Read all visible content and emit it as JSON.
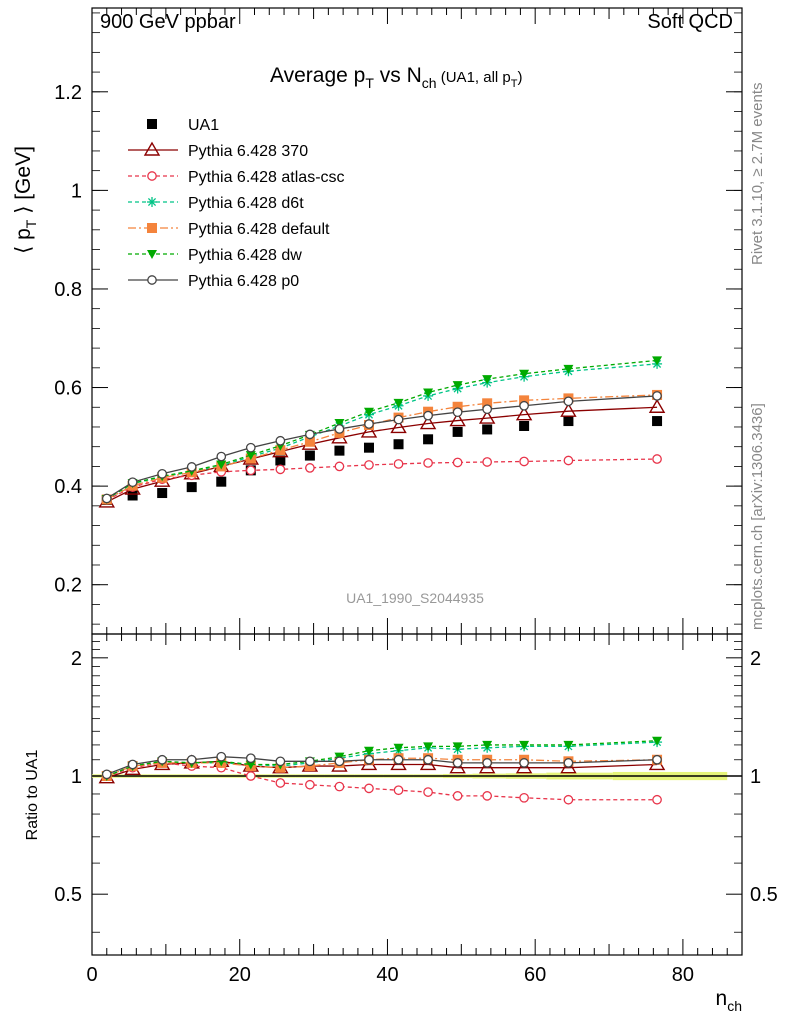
{
  "header": {
    "left": "900 GeV ppbar",
    "right": "Soft QCD"
  },
  "side": {
    "rivet": "Rivet 3.1.10, ≥ 2.7M events",
    "mcplots": "mcplots.cern.ch [arXiv:1306.3436]"
  },
  "analysis_label": "UA1_1990_S2044935",
  "chart_data": [
    {
      "type": "scatter",
      "title_parts": {
        "a": "Average p",
        "a_sub": "T",
        "b": " vs N",
        "b_sub": "ch",
        "c": " (UA1, all p",
        "c_sub": "T",
        "d": ")"
      },
      "ylabel_parts": {
        "a": "⟨ p",
        "sub": "T",
        "b": " ⟩ [GeV]"
      },
      "ylim": [
        0.1,
        1.37
      ],
      "yticks": [
        0.2,
        0.4,
        0.6,
        0.8,
        1.0,
        1.2
      ],
      "ytick_labels": [
        "0.2",
        "0.4",
        "0.6",
        "0.8",
        "1",
        "1.2"
      ],
      "xlim": [
        0,
        88
      ],
      "x": [
        2,
        5.5,
        9.5,
        13.5,
        17.5,
        21.5,
        25.5,
        29.5,
        33.5,
        37.5,
        41.5,
        45.5,
        49.5,
        53.5,
        58.5,
        64.5,
        76.5
      ],
      "legend_position": "top-left",
      "series": [
        {
          "name": "UA1",
          "color": "#000000",
          "marker": "square-filled",
          "dash": "none",
          "values": [
            0.372,
            0.381,
            0.386,
            0.398,
            0.409,
            0.432,
            0.452,
            0.462,
            0.472,
            0.478,
            0.485,
            0.495,
            0.51,
            0.515,
            0.522,
            0.532,
            0.532
          ]
        },
        {
          "name": "Pythia 6.428 370",
          "color": "#8b0000",
          "marker": "triangle-open",
          "dash": "solid",
          "values": [
            0.368,
            0.394,
            0.41,
            0.425,
            0.44,
            0.455,
            0.47,
            0.485,
            0.498,
            0.51,
            0.519,
            0.527,
            0.533,
            0.538,
            0.545,
            0.552,
            0.56
          ]
        },
        {
          "name": "Pythia 6.428 atlas-csc",
          "color": "#e8344a",
          "marker": "circle-open",
          "dash": "4,3",
          "values": [
            0.372,
            0.398,
            0.414,
            0.422,
            0.429,
            0.432,
            0.434,
            0.437,
            0.44,
            0.443,
            0.445,
            0.447,
            0.448,
            0.449,
            0.45,
            0.452,
            0.455
          ]
        },
        {
          "name": "Pythia 6.428 d6t",
          "color": "#00c486",
          "marker": "star",
          "dash": "4,3",
          "values": [
            0.374,
            0.405,
            0.419,
            0.429,
            0.441,
            0.46,
            0.477,
            0.5,
            0.522,
            0.545,
            0.563,
            0.583,
            0.598,
            0.61,
            0.622,
            0.633,
            0.648
          ]
        },
        {
          "name": "Pythia 6.428 default",
          "color": "#f4843c",
          "marker": "square-filled",
          "dash": "8,3,2,3",
          "values": [
            0.373,
            0.401,
            0.417,
            0.428,
            0.44,
            0.456,
            0.473,
            0.49,
            0.508,
            0.524,
            0.539,
            0.551,
            0.561,
            0.568,
            0.574,
            0.578,
            0.585
          ]
        },
        {
          "name": "Pythia 6.428 dw",
          "color": "#00aa00",
          "marker": "triangle-down-filled",
          "dash": "4,3",
          "values": [
            0.374,
            0.406,
            0.42,
            0.431,
            0.444,
            0.463,
            0.482,
            0.504,
            0.528,
            0.551,
            0.569,
            0.59,
            0.605,
            0.617,
            0.628,
            0.638,
            0.655
          ]
        },
        {
          "name": "Pythia 6.428 p0",
          "color": "#444444",
          "marker": "circle-open",
          "dash": "solid",
          "values": [
            0.375,
            0.408,
            0.425,
            0.439,
            0.46,
            0.478,
            0.492,
            0.505,
            0.516,
            0.526,
            0.535,
            0.543,
            0.55,
            0.556,
            0.563,
            0.572,
            0.583
          ]
        }
      ]
    },
    {
      "type": "scatter",
      "ylabel": "Ratio to UA1",
      "xlabel_parts": {
        "a": "n",
        "sub": "ch"
      },
      "ylim": [
        0.35,
        2.3
      ],
      "yticks": [
        0.5,
        1.0,
        2.0
      ],
      "ytick_labels": [
        "0.5",
        "1",
        "2"
      ],
      "xlim": [
        0,
        88
      ],
      "xticks": [
        0,
        20,
        40,
        60,
        80
      ],
      "xtick_labels": [
        "0",
        "20",
        "40",
        "60",
        "80"
      ],
      "x": [
        2,
        5.5,
        9.5,
        13.5,
        17.5,
        21.5,
        25.5,
        29.5,
        33.5,
        37.5,
        41.5,
        45.5,
        49.5,
        53.5,
        58.5,
        64.5,
        76.5
      ],
      "band_color": "#e6f57a",
      "reference": 1.0,
      "series": [
        {
          "name": "Pythia 6.428 370",
          "color": "#8b0000",
          "marker": "triangle-open",
          "dash": "solid",
          "values": [
            0.99,
            1.04,
            1.07,
            1.08,
            1.09,
            1.06,
            1.05,
            1.06,
            1.06,
            1.07,
            1.07,
            1.07,
            1.05,
            1.05,
            1.05,
            1.05,
            1.07
          ]
        },
        {
          "name": "Pythia 6.428 atlas-csc",
          "color": "#e8344a",
          "marker": "circle-open",
          "dash": "4,3",
          "values": [
            1.0,
            1.05,
            1.08,
            1.06,
            1.05,
            1.0,
            0.96,
            0.95,
            0.94,
            0.93,
            0.92,
            0.91,
            0.89,
            0.89,
            0.88,
            0.87,
            0.87
          ]
        },
        {
          "name": "Pythia 6.428 d6t",
          "color": "#00c486",
          "marker": "star",
          "dash": "4,3",
          "values": [
            1.0,
            1.06,
            1.09,
            1.08,
            1.08,
            1.07,
            1.06,
            1.08,
            1.11,
            1.14,
            1.16,
            1.18,
            1.17,
            1.18,
            1.19,
            1.19,
            1.22
          ]
        },
        {
          "name": "Pythia 6.428 default",
          "color": "#f4843c",
          "marker": "square-filled",
          "dash": "8,3,2,3",
          "values": [
            1.0,
            1.06,
            1.08,
            1.08,
            1.08,
            1.06,
            1.05,
            1.06,
            1.08,
            1.1,
            1.11,
            1.11,
            1.1,
            1.1,
            1.1,
            1.09,
            1.1
          ]
        },
        {
          "name": "Pythia 6.428 dw",
          "color": "#00aa00",
          "marker": "triangle-down-filled",
          "dash": "4,3",
          "values": [
            1.0,
            1.06,
            1.09,
            1.08,
            1.09,
            1.07,
            1.07,
            1.09,
            1.12,
            1.16,
            1.18,
            1.19,
            1.19,
            1.2,
            1.2,
            1.2,
            1.23
          ]
        },
        {
          "name": "Pythia 6.428 p0",
          "color": "#444444",
          "marker": "circle-open",
          "dash": "solid",
          "values": [
            1.01,
            1.07,
            1.1,
            1.1,
            1.12,
            1.11,
            1.09,
            1.09,
            1.09,
            1.1,
            1.1,
            1.1,
            1.08,
            1.08,
            1.08,
            1.08,
            1.1
          ]
        }
      ]
    }
  ]
}
